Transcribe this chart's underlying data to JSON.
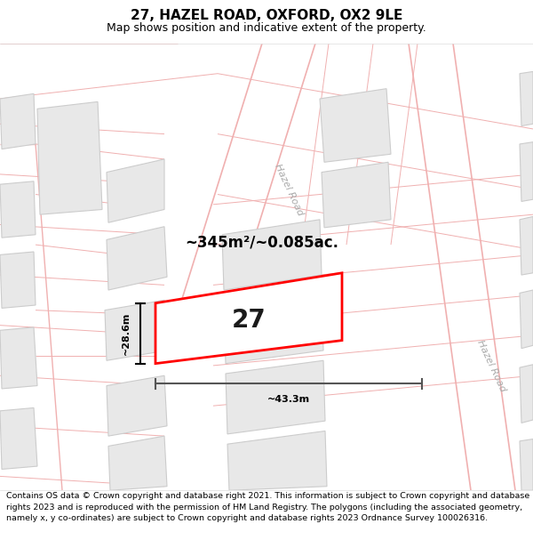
{
  "title": "27, HAZEL ROAD, OXFORD, OX2 9LE",
  "subtitle": "Map shows position and indicative extent of the property.",
  "copyright": "Contains OS data © Crown copyright and database right 2021. This information is subject to Crown copyright and database rights 2023 and is reproduced with the permission of HM Land Registry. The polygons (including the associated geometry, namely x, y co-ordinates) are subject to Crown copyright and database rights 2023 Ordnance Survey 100026316.",
  "area_label": "~345m²/~0.085ac.",
  "width_label": "~43.3m",
  "height_label": "~28.6m",
  "number_label": "27",
  "map_bg": "#ffffff",
  "road_outline_color": "#f0b0b0",
  "block_fill": "#e8e8e8",
  "block_stroke": "#cccccc",
  "parcel_stroke": "#f0b0b0",
  "property_fill": "#ffffff",
  "property_stroke": "#ff0000",
  "title_color": "#000000",
  "hazel_road_color": "#aaaaaa",
  "title_fontsize": 11,
  "subtitle_fontsize": 9,
  "copyright_fontsize": 6.8,
  "dim_color": "#333333"
}
